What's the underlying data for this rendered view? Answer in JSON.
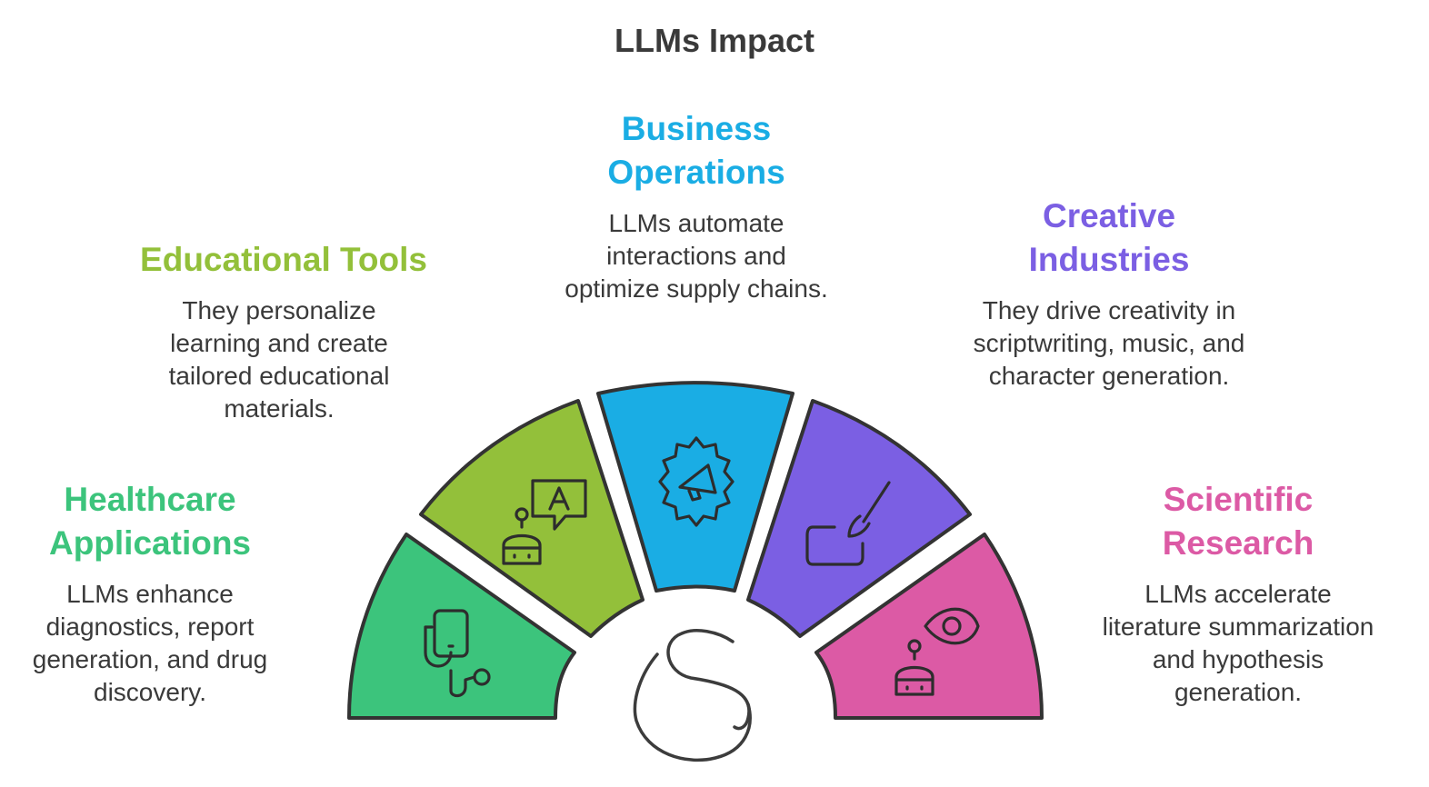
{
  "title": "LLMs Impact",
  "segments": [
    {
      "id": "healthcare",
      "title_lines": [
        "Healthcare",
        "Applications"
      ],
      "desc_lines": [
        "LLMs enhance",
        "diagnostics, report",
        "generation, and drug",
        "discovery."
      ],
      "color": "#3cc47c",
      "icon": "stethoscope-phone-icon"
    },
    {
      "id": "educational",
      "title_lines": [
        "Educational Tools"
      ],
      "desc_lines": [
        "They personalize",
        "learning and create",
        "tailored educational",
        "materials."
      ],
      "color": "#93c03a",
      "icon": "robot-chat-icon"
    },
    {
      "id": "business",
      "title_lines": [
        "Business",
        "Operations"
      ],
      "desc_lines": [
        "LLMs automate",
        "interactions and",
        "optimize supply chains."
      ],
      "color": "#1aade4",
      "icon": "megaphone-gear-icon"
    },
    {
      "id": "creative",
      "title_lines": [
        "Creative",
        "Industries"
      ],
      "desc_lines": [
        "They drive creativity in",
        "scriptwriting, music, and",
        "character generation."
      ],
      "color": "#7b5fe3",
      "icon": "paintbrush-icon"
    },
    {
      "id": "scientific",
      "title_lines": [
        "Scientific",
        "Research"
      ],
      "desc_lines": [
        "LLMs accelerate",
        "literature summarization",
        "and hypothesis",
        "generation."
      ],
      "color": "#dc5aa5",
      "icon": "robot-eye-icon"
    }
  ]
}
